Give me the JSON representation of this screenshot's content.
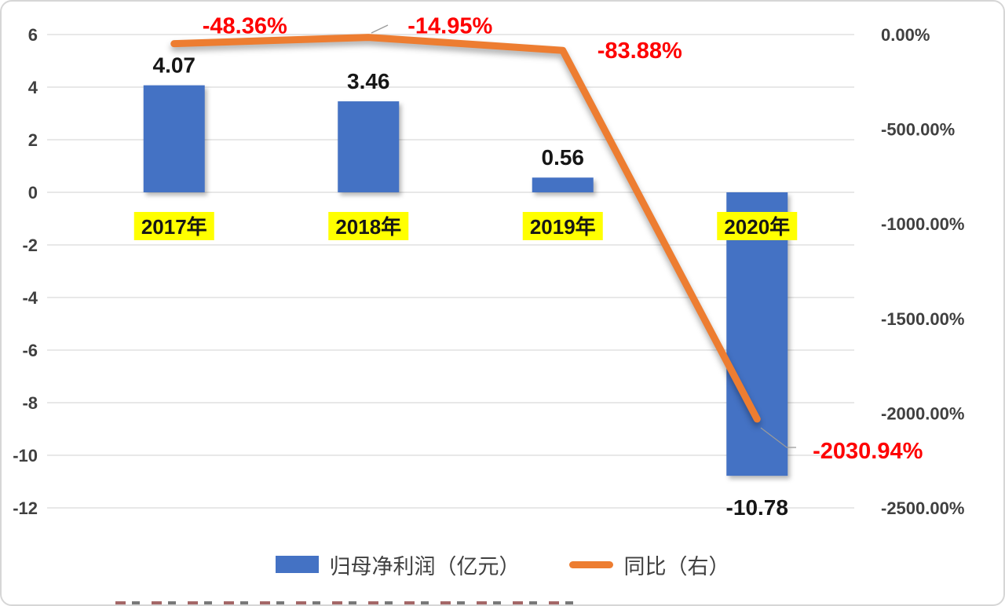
{
  "chart_data": {
    "type": "bar",
    "subtype": "combo-bar-line",
    "title": "",
    "categories": [
      "2017年",
      "2018年",
      "2019年",
      "2020年"
    ],
    "series": [
      {
        "name": "归母净利润（亿元）",
        "type": "bar",
        "axis": "left",
        "values": [
          4.07,
          3.46,
          0.56,
          -10.78
        ],
        "labels": [
          "4.07",
          "3.46",
          "0.56",
          "-10.78"
        ],
        "color": "#4472C4"
      },
      {
        "name": "同比（右）",
        "type": "line",
        "axis": "right",
        "values": [
          -48.36,
          -14.95,
          -83.88,
          -2030.94
        ],
        "labels": [
          "-48.36%",
          "-14.95%",
          "-83.88%",
          "-2030.94%"
        ],
        "color": "#ED7D31"
      }
    ],
    "left_axis": {
      "min": -12,
      "max": 6,
      "step": 2,
      "ticks": [
        "6",
        "4",
        "2",
        "0",
        "-2",
        "-4",
        "-6",
        "-8",
        "-10",
        "-12"
      ]
    },
    "right_axis": {
      "min": -2500,
      "max": 0,
      "step": 500,
      "ticks": [
        "0.00%",
        "-500.00%",
        "-1000.00%",
        "-1500.00%",
        "-2000.00%",
        "-2500.00%"
      ]
    },
    "grid": true,
    "legend_position": "bottom",
    "styles": {
      "grid_color": "#D9D9D9",
      "tick_color": "#404040",
      "bar_label_color": "#161616",
      "line_label_color": "#FE0000",
      "category_text_color": "#161616",
      "category_bg": "#FFFF00",
      "leader_color": "#9A9A9A"
    }
  },
  "legend": {
    "bar_label": "归母净利润（亿元）",
    "line_label": "同比（右）"
  }
}
